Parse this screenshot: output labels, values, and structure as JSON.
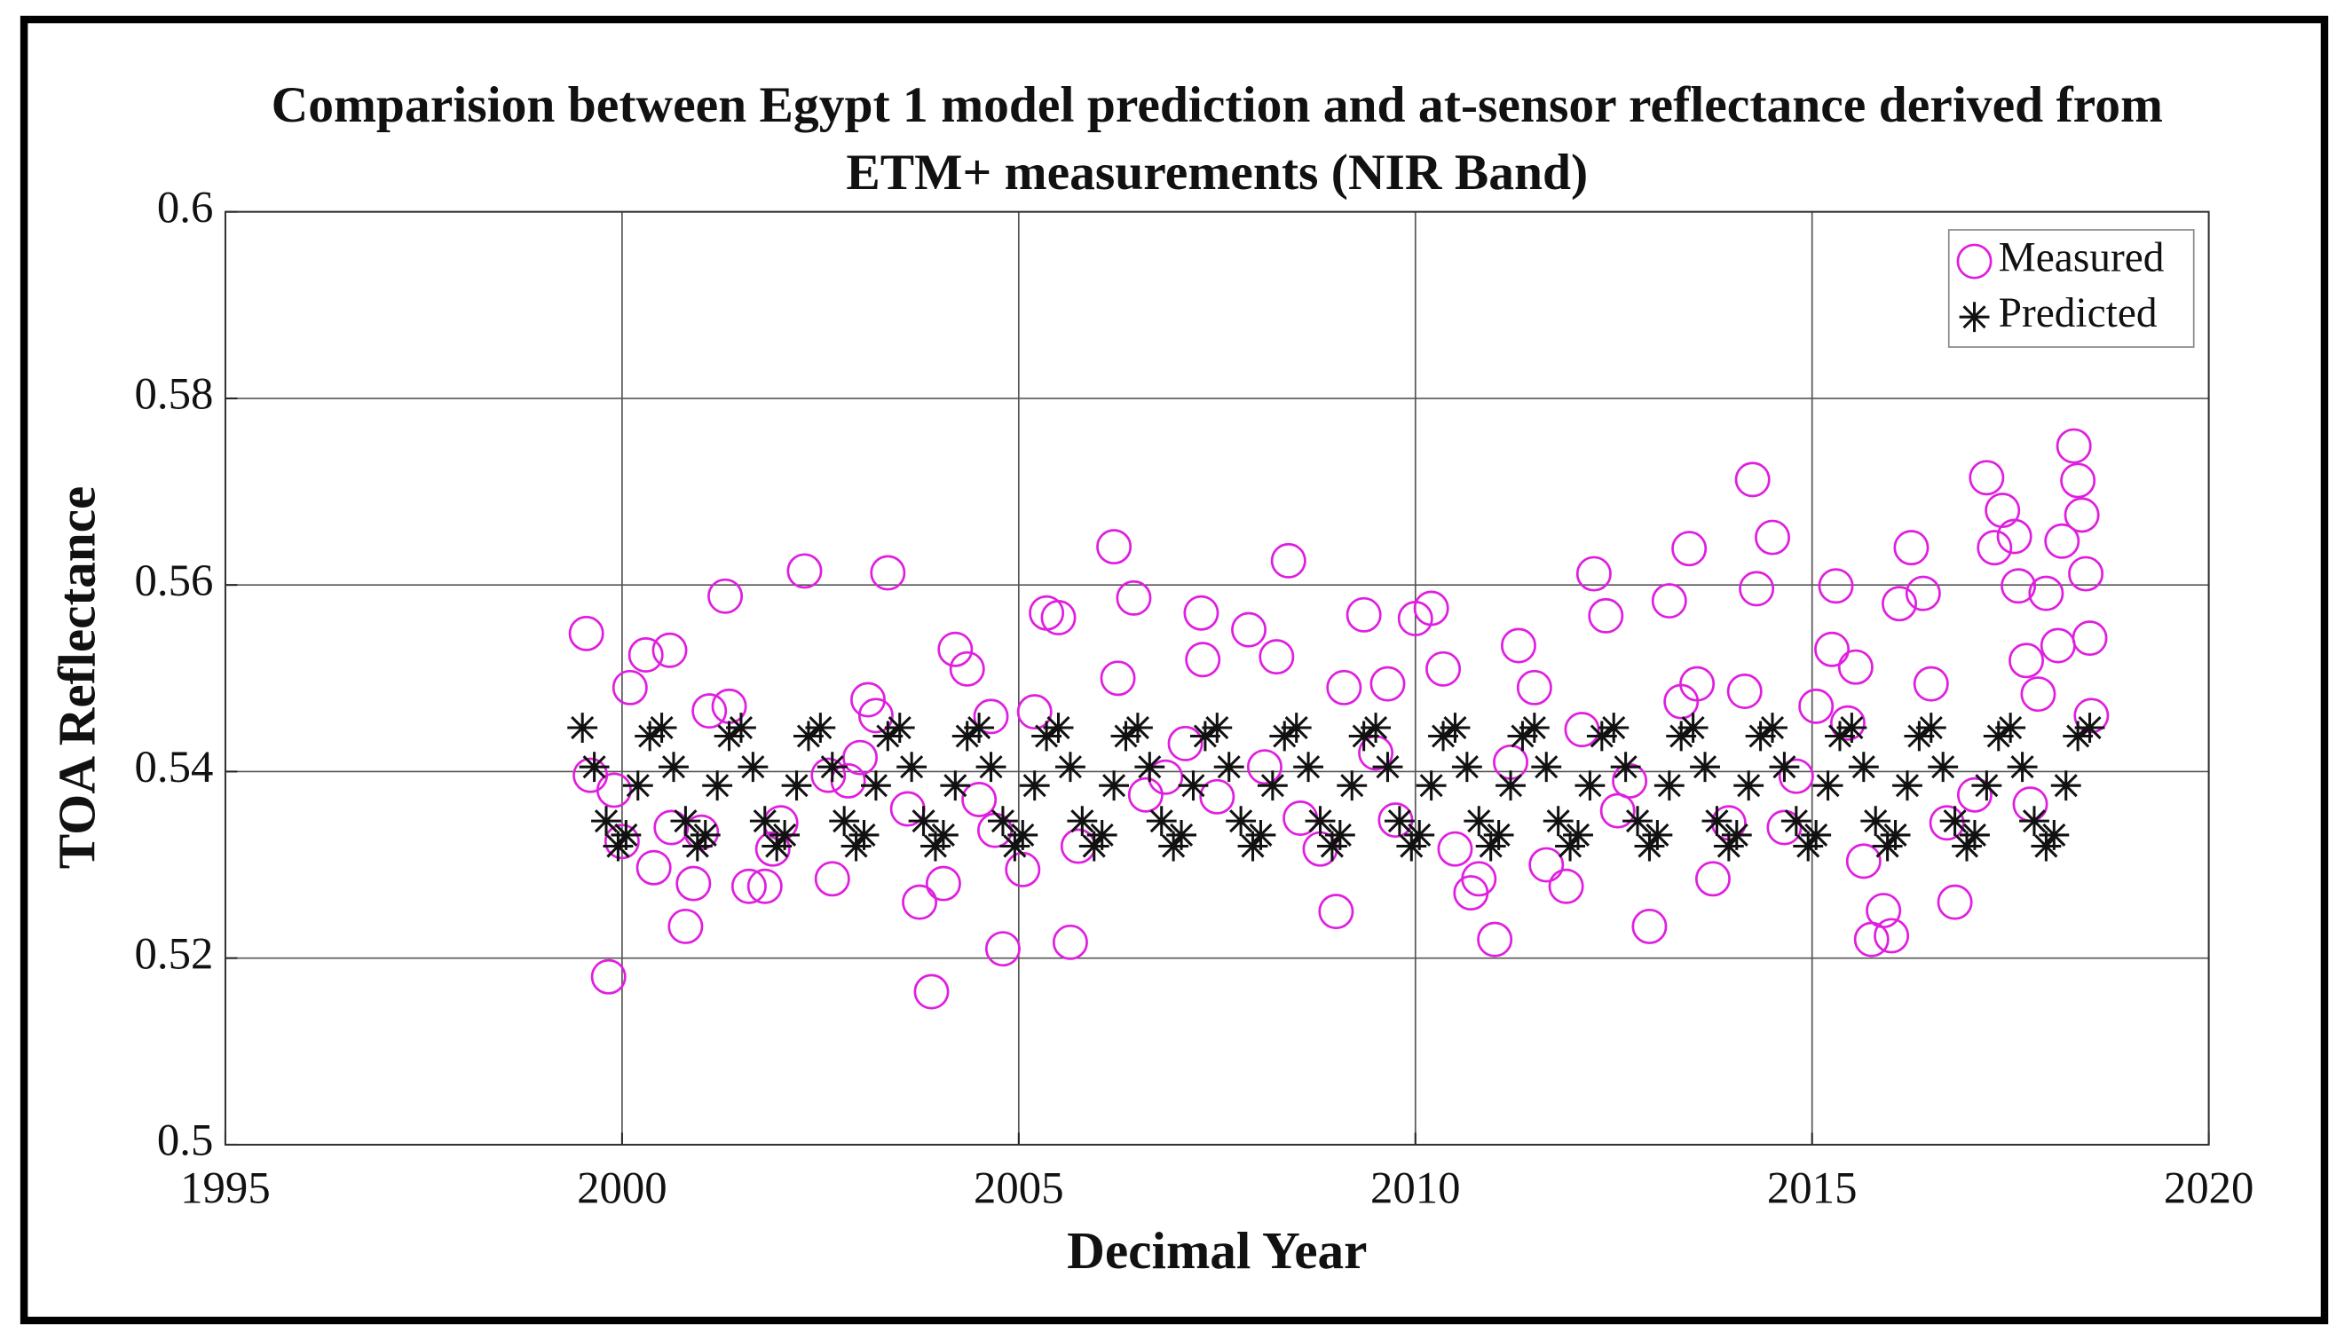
{
  "chart_data": {
    "type": "scatter",
    "title": [
      "Comparision between Egypt 1 model prediction and at-sensor reflectance derived from",
      "ETM+ measurements (NIR Band)"
    ],
    "xlabel": "Decimal Year",
    "ylabel": "TOA Reflectance",
    "xlim": [
      1995,
      2020
    ],
    "xticks": [
      1995,
      2000,
      2005,
      2010,
      2015,
      2020
    ],
    "ylim": [
      0.5,
      0.6
    ],
    "yticks": [
      0.5,
      0.52,
      0.54,
      0.56,
      0.58,
      0.6
    ],
    "grid": true,
    "legend": "upper right",
    "series": [
      {
        "name": "Measured",
        "color": "#e01ee0",
        "marker": "circle",
        "x": [
          1999.55,
          1999.6,
          1999.83,
          1999.9,
          2000.1,
          2000.3,
          2000.4,
          2000.6,
          2000.62,
          2000.8,
          2000.9,
          2001.1,
          2001.3,
          2001.35,
          2001.6,
          2001.8,
          2001.9,
          2002.3,
          2002.6,
          2002.65,
          2002.85,
          2003.1,
          2003.2,
          2003.35,
          2003.6,
          2003.75,
          2003.9,
          2004.05,
          2004.2,
          2004.35,
          2004.65,
          2004.7,
          2004.8,
          2005.05,
          2005.2,
          2005.35,
          2005.65,
          2005.75,
          2006.2,
          2006.25,
          2006.45,
          2006.85,
          2007.3,
          2007.32,
          2007.5,
          2007.9,
          2008.25,
          2008.4,
          2008.55,
          2008.8,
          2009.0,
          2009.1,
          2009.35,
          2009.65,
          2009.75,
          2010.0,
          2010.2,
          2010.35,
          2010.5,
          2010.7,
          2011.0,
          2011.3,
          2011.5,
          2011.65,
          2011.9,
          2012.25,
          2012.4,
          2012.55,
          2012.95,
          2013.2,
          2013.45,
          2013.55,
          2013.75,
          2014.15,
          2014.25,
          2014.3,
          2014.5,
          2014.65,
          2015.05,
          2015.25,
          2015.3,
          2015.55,
          2015.65,
          2015.75,
          2015.9,
          2016.0,
          2016.1,
          2016.25,
          2016.4,
          2016.5,
          2016.8,
          2017.2,
          2017.3,
          2017.4,
          2017.55,
          2017.6,
          2017.7,
          2017.85,
          2017.95,
          2018.1,
          2018.15,
          2018.3,
          2018.35,
          2018.4,
          2018.45,
          2018.5,
          2018.52,
          2000.0,
          2001.0,
          2002.0,
          2003.0,
          2004.5,
          2005.5,
          2006.6,
          2007.1,
          2008.1,
          2009.5,
          2010.8,
          2011.2,
          2012.1,
          2012.7,
          2013.35,
          2013.95,
          2014.8,
          2015.45,
          2016.7,
          2017.05,
          2017.75
        ],
        "values": [
          0.5548,
          0.5396,
          0.518,
          0.538,
          0.549,
          0.5525,
          0.5297,
          0.553,
          0.534,
          0.5234,
          0.528,
          0.5465,
          0.5588,
          0.547,
          0.5277,
          0.5277,
          0.5317,
          0.5615,
          0.5396,
          0.5285,
          0.539,
          0.5477,
          0.546,
          0.5613,
          0.536,
          0.526,
          0.5164,
          0.528,
          0.5531,
          0.551,
          0.5459,
          0.5337,
          0.521,
          0.5295,
          0.5464,
          0.557,
          0.5217,
          0.532,
          0.5641,
          0.55,
          0.5586,
          0.5394,
          0.557,
          0.552,
          0.5373,
          0.5552,
          0.5523,
          0.5626,
          0.535,
          0.5317,
          0.525,
          0.549,
          0.5568,
          0.5494,
          0.5348,
          0.5564,
          0.5575,
          0.551,
          0.5317,
          0.527,
          0.522,
          0.5535,
          0.549,
          0.53,
          0.5277,
          0.5612,
          0.5567,
          0.5358,
          0.5234,
          0.5583,
          0.5639,
          0.5494,
          0.5285,
          0.5486,
          0.5713,
          0.5596,
          0.5651,
          0.534,
          0.547,
          0.5531,
          0.5599,
          0.5512,
          0.5304,
          0.522,
          0.5251,
          0.5224,
          0.558,
          0.564,
          0.5591,
          0.5494,
          0.526,
          0.5715,
          0.564,
          0.568,
          0.5652,
          0.5599,
          0.5519,
          0.5483,
          0.5591,
          0.5535,
          0.5647,
          0.5749,
          0.5712,
          0.5675,
          0.5612,
          0.5543,
          0.546,
          0.5325,
          0.5335,
          0.5345,
          0.5415,
          0.537,
          0.5565,
          0.5375,
          0.543,
          0.5405,
          0.542,
          0.5285,
          0.541,
          0.5445,
          0.539,
          0.5475,
          0.5345,
          0.5395,
          0.5452,
          0.5345,
          0.5375,
          0.5365
        ]
      },
      {
        "name": "Predicted",
        "color": "#111111",
        "marker": "asterisk",
        "x": [
          1999.5,
          1999.65,
          1999.8,
          1999.95,
          2000.05,
          2000.2,
          2000.35,
          2000.5,
          2000.65,
          2000.8,
          2000.95,
          2001.05,
          2001.2,
          2001.35,
          2001.5,
          2001.65,
          2001.8,
          2001.95,
          2002.05,
          2002.2,
          2002.35,
          2002.5,
          2002.65,
          2002.8,
          2002.95,
          2003.05,
          2003.2,
          2003.35,
          2003.5,
          2003.65,
          2003.8,
          2003.95,
          2004.05,
          2004.2,
          2004.35,
          2004.5,
          2004.65,
          2004.8,
          2004.95,
          2005.05,
          2005.2,
          2005.35,
          2005.5,
          2005.65,
          2005.8,
          2005.95,
          2006.05,
          2006.2,
          2006.35,
          2006.5,
          2006.65,
          2006.8,
          2006.95,
          2007.05,
          2007.2,
          2007.35,
          2007.5,
          2007.65,
          2007.8,
          2007.95,
          2008.05,
          2008.2,
          2008.35,
          2008.5,
          2008.65,
          2008.8,
          2008.95,
          2009.05,
          2009.2,
          2009.35,
          2009.5,
          2009.65,
          2009.8,
          2009.95,
          2010.05,
          2010.2,
          2010.35,
          2010.5,
          2010.65,
          2010.8,
          2010.95,
          2011.05,
          2011.2,
          2011.35,
          2011.5,
          2011.65,
          2011.8,
          2011.95,
          2012.05,
          2012.2,
          2012.35,
          2012.5,
          2012.65,
          2012.8,
          2012.95,
          2013.05,
          2013.2,
          2013.35,
          2013.5,
          2013.65,
          2013.8,
          2013.95,
          2014.05,
          2014.2,
          2014.35,
          2014.5,
          2014.65,
          2014.8,
          2014.95,
          2015.05,
          2015.2,
          2015.35,
          2015.5,
          2015.65,
          2015.8,
          2015.95,
          2016.05,
          2016.2,
          2016.35,
          2016.5,
          2016.65,
          2016.8,
          2016.95,
          2017.05,
          2017.2,
          2017.35,
          2017.5,
          2017.65,
          2017.8,
          2017.95,
          2018.05,
          2018.2,
          2018.35,
          2018.5
        ],
        "values": [
          0.5447,
          0.5405,
          0.5347,
          0.532,
          0.5332,
          0.5385,
          0.5438,
          0.5447,
          0.5405,
          0.5347,
          0.532,
          0.5332,
          0.5385,
          0.5438,
          0.5447,
          0.5405,
          0.5347,
          0.532,
          0.5332,
          0.5385,
          0.5438,
          0.5447,
          0.5405,
          0.5347,
          0.532,
          0.5332,
          0.5385,
          0.5438,
          0.5447,
          0.5405,
          0.5347,
          0.532,
          0.5332,
          0.5385,
          0.5438,
          0.5447,
          0.5405,
          0.5347,
          0.532,
          0.5332,
          0.5385,
          0.5438,
          0.5447,
          0.5405,
          0.5347,
          0.532,
          0.5332,
          0.5385,
          0.5438,
          0.5447,
          0.5405,
          0.5347,
          0.532,
          0.5332,
          0.5385,
          0.5438,
          0.5447,
          0.5405,
          0.5347,
          0.532,
          0.5332,
          0.5385,
          0.5438,
          0.5447,
          0.5405,
          0.5347,
          0.532,
          0.5332,
          0.5385,
          0.5438,
          0.5447,
          0.5405,
          0.5347,
          0.532,
          0.5332,
          0.5385,
          0.5438,
          0.5447,
          0.5405,
          0.5347,
          0.532,
          0.5332,
          0.5385,
          0.5438,
          0.5447,
          0.5405,
          0.5347,
          0.532,
          0.5332,
          0.5385,
          0.5438,
          0.5447,
          0.5405,
          0.5347,
          0.532,
          0.5332,
          0.5385,
          0.5438,
          0.5447,
          0.5405,
          0.5347,
          0.532,
          0.5332,
          0.5385,
          0.5438,
          0.5447,
          0.5405,
          0.5347,
          0.532,
          0.5332,
          0.5385,
          0.5438,
          0.5447,
          0.5405,
          0.5347,
          0.532,
          0.5332,
          0.5385,
          0.5438,
          0.5447,
          0.5405,
          0.5347,
          0.532,
          0.5332,
          0.5385,
          0.5438,
          0.5447,
          0.5405,
          0.5347,
          0.532,
          0.5332,
          0.5385,
          0.5438,
          0.5447
        ]
      }
    ]
  }
}
